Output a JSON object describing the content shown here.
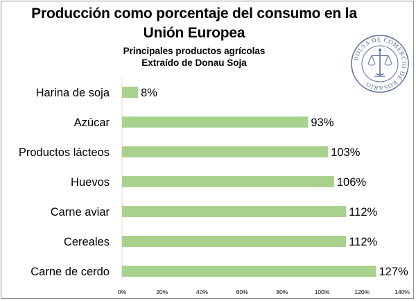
{
  "title": "Producción como porcentaje del consumo en la Unión Europea",
  "subtitle": "Principales productos agrícolas",
  "source": "Extraído de Donau Soja",
  "logo_text": "BOLSA DE COMERCIO DE ROSARIO",
  "colors": {
    "bar": "#a9d18e",
    "axis": "#d9d9d9",
    "frame": "#8c8c8c",
    "logo": "#5b6f9a"
  },
  "chart_data": {
    "type": "bar",
    "orientation": "horizontal",
    "categories": [
      "Harina de soja",
      "Azúcar",
      "Productos lácteos",
      "Huevos",
      "Carne aviar",
      "Cereales",
      "Carne de cerdo"
    ],
    "values": [
      8,
      93,
      103,
      106,
      112,
      112,
      127
    ],
    "value_labels": [
      "8%",
      "93%",
      "103%",
      "106%",
      "112%",
      "112%",
      "127%"
    ],
    "xlim": [
      0,
      140
    ],
    "xticks": [
      "0%",
      "20%",
      "40%",
      "60%",
      "80%",
      "100%",
      "120%",
      "140%"
    ],
    "grid": false,
    "legend": "none"
  }
}
